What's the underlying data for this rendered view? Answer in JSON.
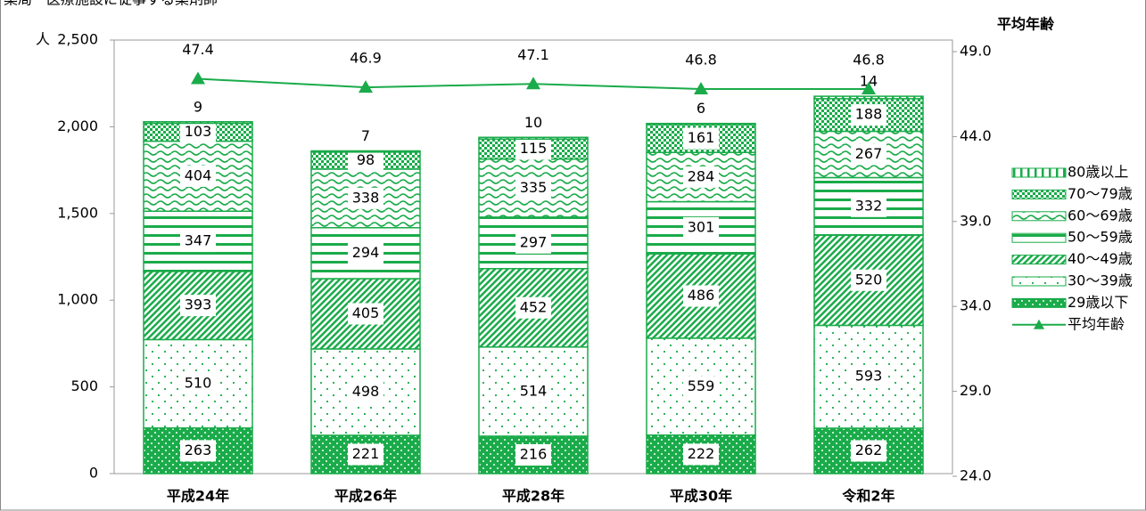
{
  "chart_data": {
    "type": "bar",
    "title": "薬局・医療施設に従事する薬剤師",
    "y_label": "人",
    "y2_label": "平均年齢",
    "categories": [
      "平成24年",
      "平成26年",
      "平成28年",
      "平成30年",
      "令和2年"
    ],
    "series": [
      {
        "name": "29歳以下",
        "color": "#1aab4a",
        "values": [
          263,
          221,
          216,
          222,
          262
        ]
      },
      {
        "name": "30〜39歳",
        "color": "#1aab4a",
        "values": [
          510,
          498,
          514,
          559,
          593
        ]
      },
      {
        "name": "40〜49歳",
        "color": "#1aab4a",
        "values": [
          393,
          405,
          452,
          486,
          520
        ]
      },
      {
        "name": "50〜59歳",
        "color": "#1aab4a",
        "values": [
          347,
          294,
          297,
          301,
          332
        ]
      },
      {
        "name": "60〜69歳",
        "color": "#1aab4a",
        "values": [
          404,
          338,
          335,
          284,
          267
        ]
      },
      {
        "name": "70〜79歳",
        "color": "#1aab4a",
        "values": [
          103,
          98,
          115,
          161,
          188
        ]
      },
      {
        "name": "80歳以上",
        "color": "#1aab4a",
        "values": [
          9,
          7,
          10,
          6,
          14
        ]
      },
      {
        "name": "平均年齢",
        "type": "line",
        "axis": "y2",
        "color": "#1aab4a",
        "values": [
          47.4,
          46.9,
          47.1,
          46.8,
          46.8
        ]
      }
    ],
    "ylim": [
      0,
      2500
    ],
    "yticks": [
      0,
      500,
      {
        "value": 1000,
        "label": "1,000"
      },
      {
        "value": 1500,
        "label": "1,500"
      },
      {
        "value": 2000,
        "label": "2,000"
      },
      {
        "value": 2500,
        "label": "2,500"
      }
    ],
    "y2lim": [
      24,
      49
    ],
    "y2ticks": [
      {
        "value": 24,
        "label": "24.0"
      },
      {
        "value": 29,
        "label": "29.0"
      },
      {
        "value": 34,
        "label": "34.0"
      },
      {
        "value": 39,
        "label": "39.0"
      },
      {
        "value": 44,
        "label": "44.0"
      },
      {
        "value": 49,
        "label": "49.0"
      }
    ],
    "legend": "right"
  }
}
